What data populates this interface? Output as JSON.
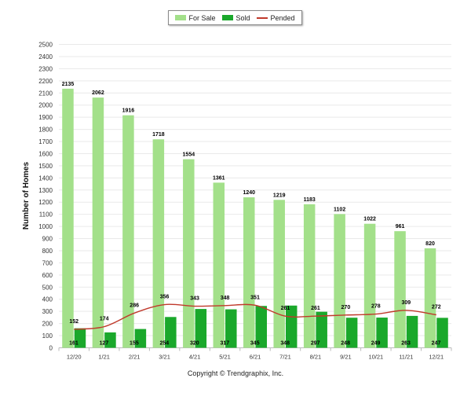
{
  "chart_data": {
    "type": "bar",
    "title": "",
    "xlabel": "",
    "ylabel": "Number of Homes",
    "ylim": [
      0,
      2500
    ],
    "ytick_step": 100,
    "grid": true,
    "legend_position": "top-center",
    "categories": [
      "12/20",
      "1/21",
      "2/21",
      "3/21",
      "4/21",
      "5/21",
      "6/21",
      "7/21",
      "8/21",
      "9/21",
      "10/21",
      "11/21",
      "12/21"
    ],
    "series": [
      {
        "name": "For Sale",
        "kind": "bar",
        "color": "#a3e08a",
        "values": [
          2135,
          2062,
          1916,
          1718,
          1554,
          1361,
          1240,
          1219,
          1183,
          1102,
          1022,
          961,
          820
        ]
      },
      {
        "name": "Sold",
        "kind": "bar",
        "color": "#1aa82b",
        "values": [
          161,
          127,
          155,
          254,
          320,
          317,
          345,
          348,
          297,
          248,
          249,
          263,
          247
        ]
      },
      {
        "name": "Pended",
        "kind": "line",
        "color": "#c0392b",
        "values": [
          152,
          174,
          286,
          356,
          343,
          348,
          351,
          261,
          261,
          270,
          278,
          309,
          272
        ]
      }
    ]
  },
  "footer": {
    "copyright": "Copyright © Trendgraphix, Inc."
  }
}
